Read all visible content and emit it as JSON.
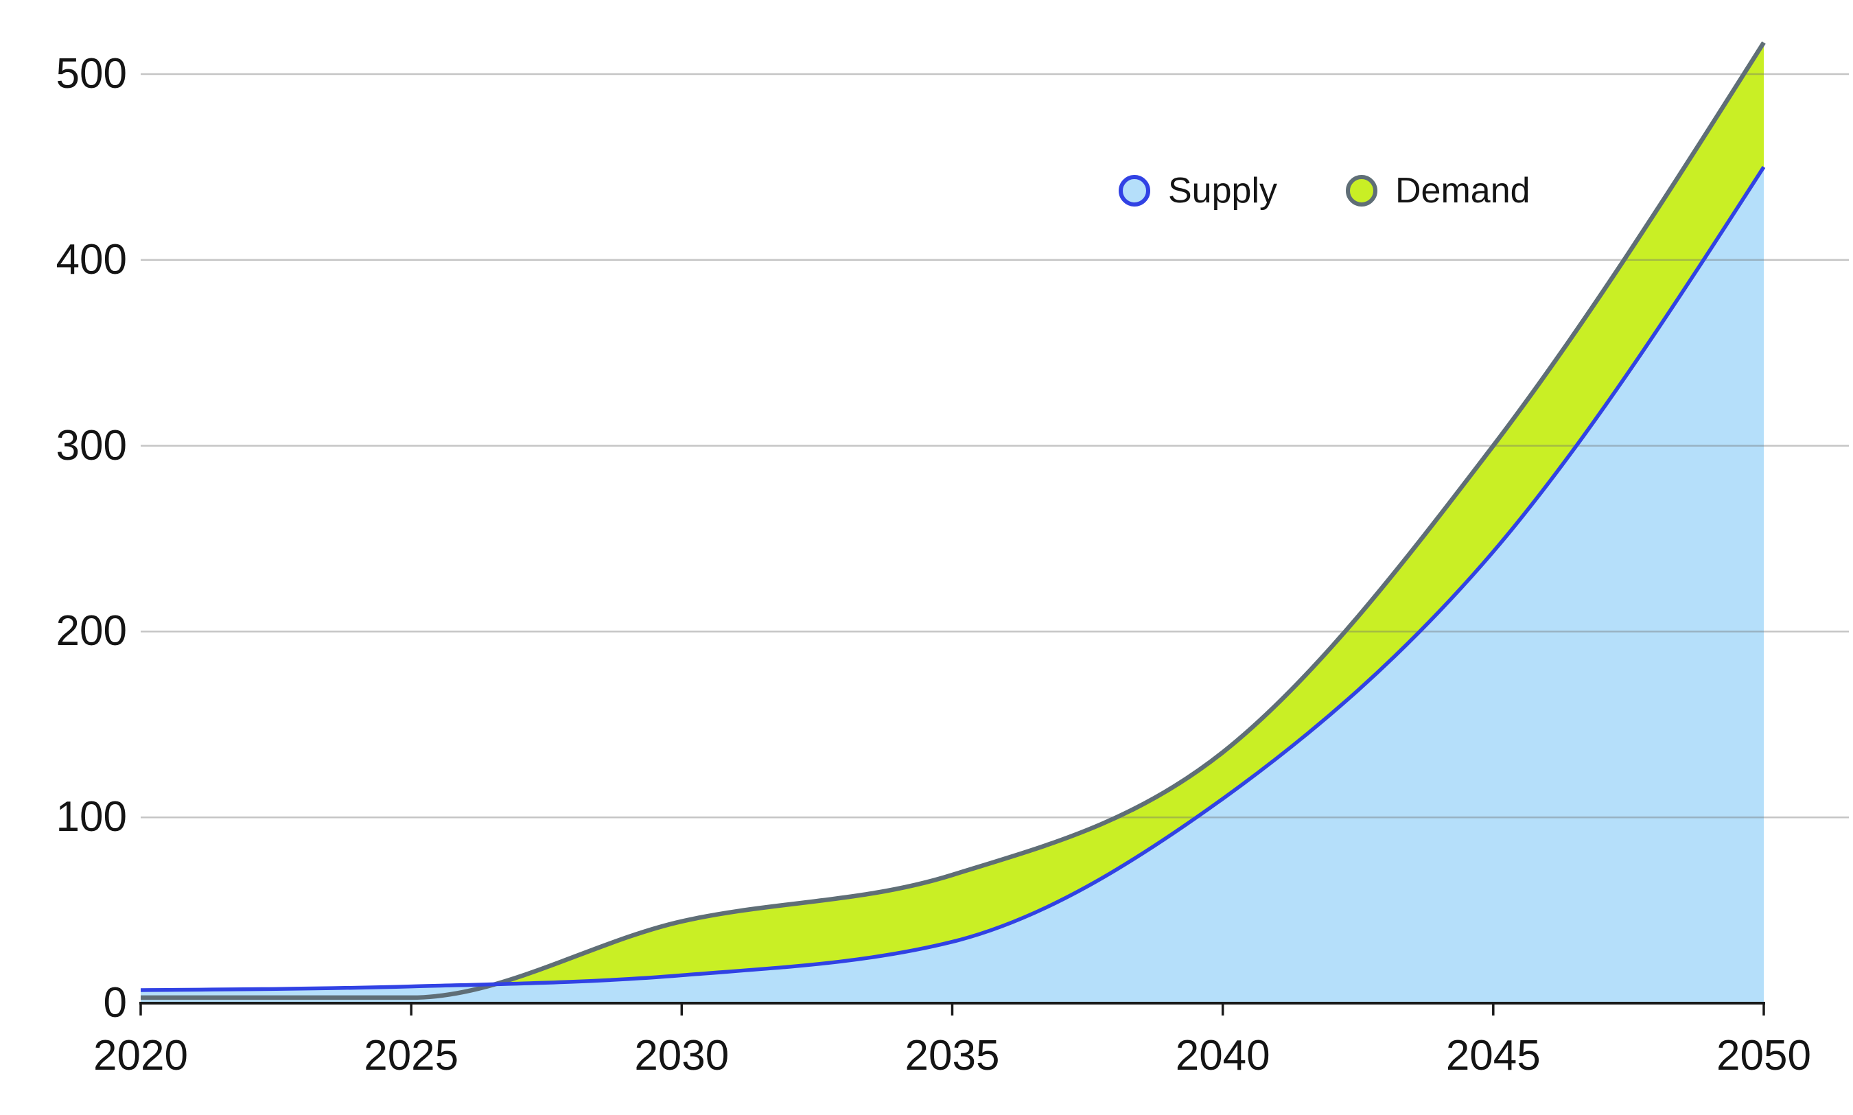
{
  "chart_data": {
    "type": "area",
    "title": "",
    "xlabel": "",
    "ylabel": "",
    "x": [
      2020,
      2025,
      2030,
      2035,
      2040,
      2045,
      2050
    ],
    "series": [
      {
        "name": "Supply",
        "values": [
          7,
          9,
          15,
          33,
          110,
          243,
          450
        ],
        "line_color": "#3142E4",
        "fill_color": "#B5DFFA"
      },
      {
        "name": "Demand",
        "values": [
          3,
          3,
          44,
          69,
          135,
          300,
          517
        ],
        "line_color": "#5F6E76",
        "fill_color": "#C9EF25"
      }
    ],
    "xlim": [
      2020,
      2050
    ],
    "ylim": [
      0,
      500
    ],
    "x_ticks": [
      "2020",
      "2025",
      "2030",
      "2035",
      "2040",
      "2045",
      "2050"
    ],
    "y_ticks": [
      "0",
      "100",
      "200",
      "300",
      "400",
      "500"
    ],
    "grid": true,
    "curve": "monotone",
    "legend_position": "top-center"
  },
  "colors": {
    "background": "#FFFFFF",
    "gridline": "#D6D6D6",
    "axis_line": "#1A1A1A",
    "tick_text": "#141414"
  }
}
